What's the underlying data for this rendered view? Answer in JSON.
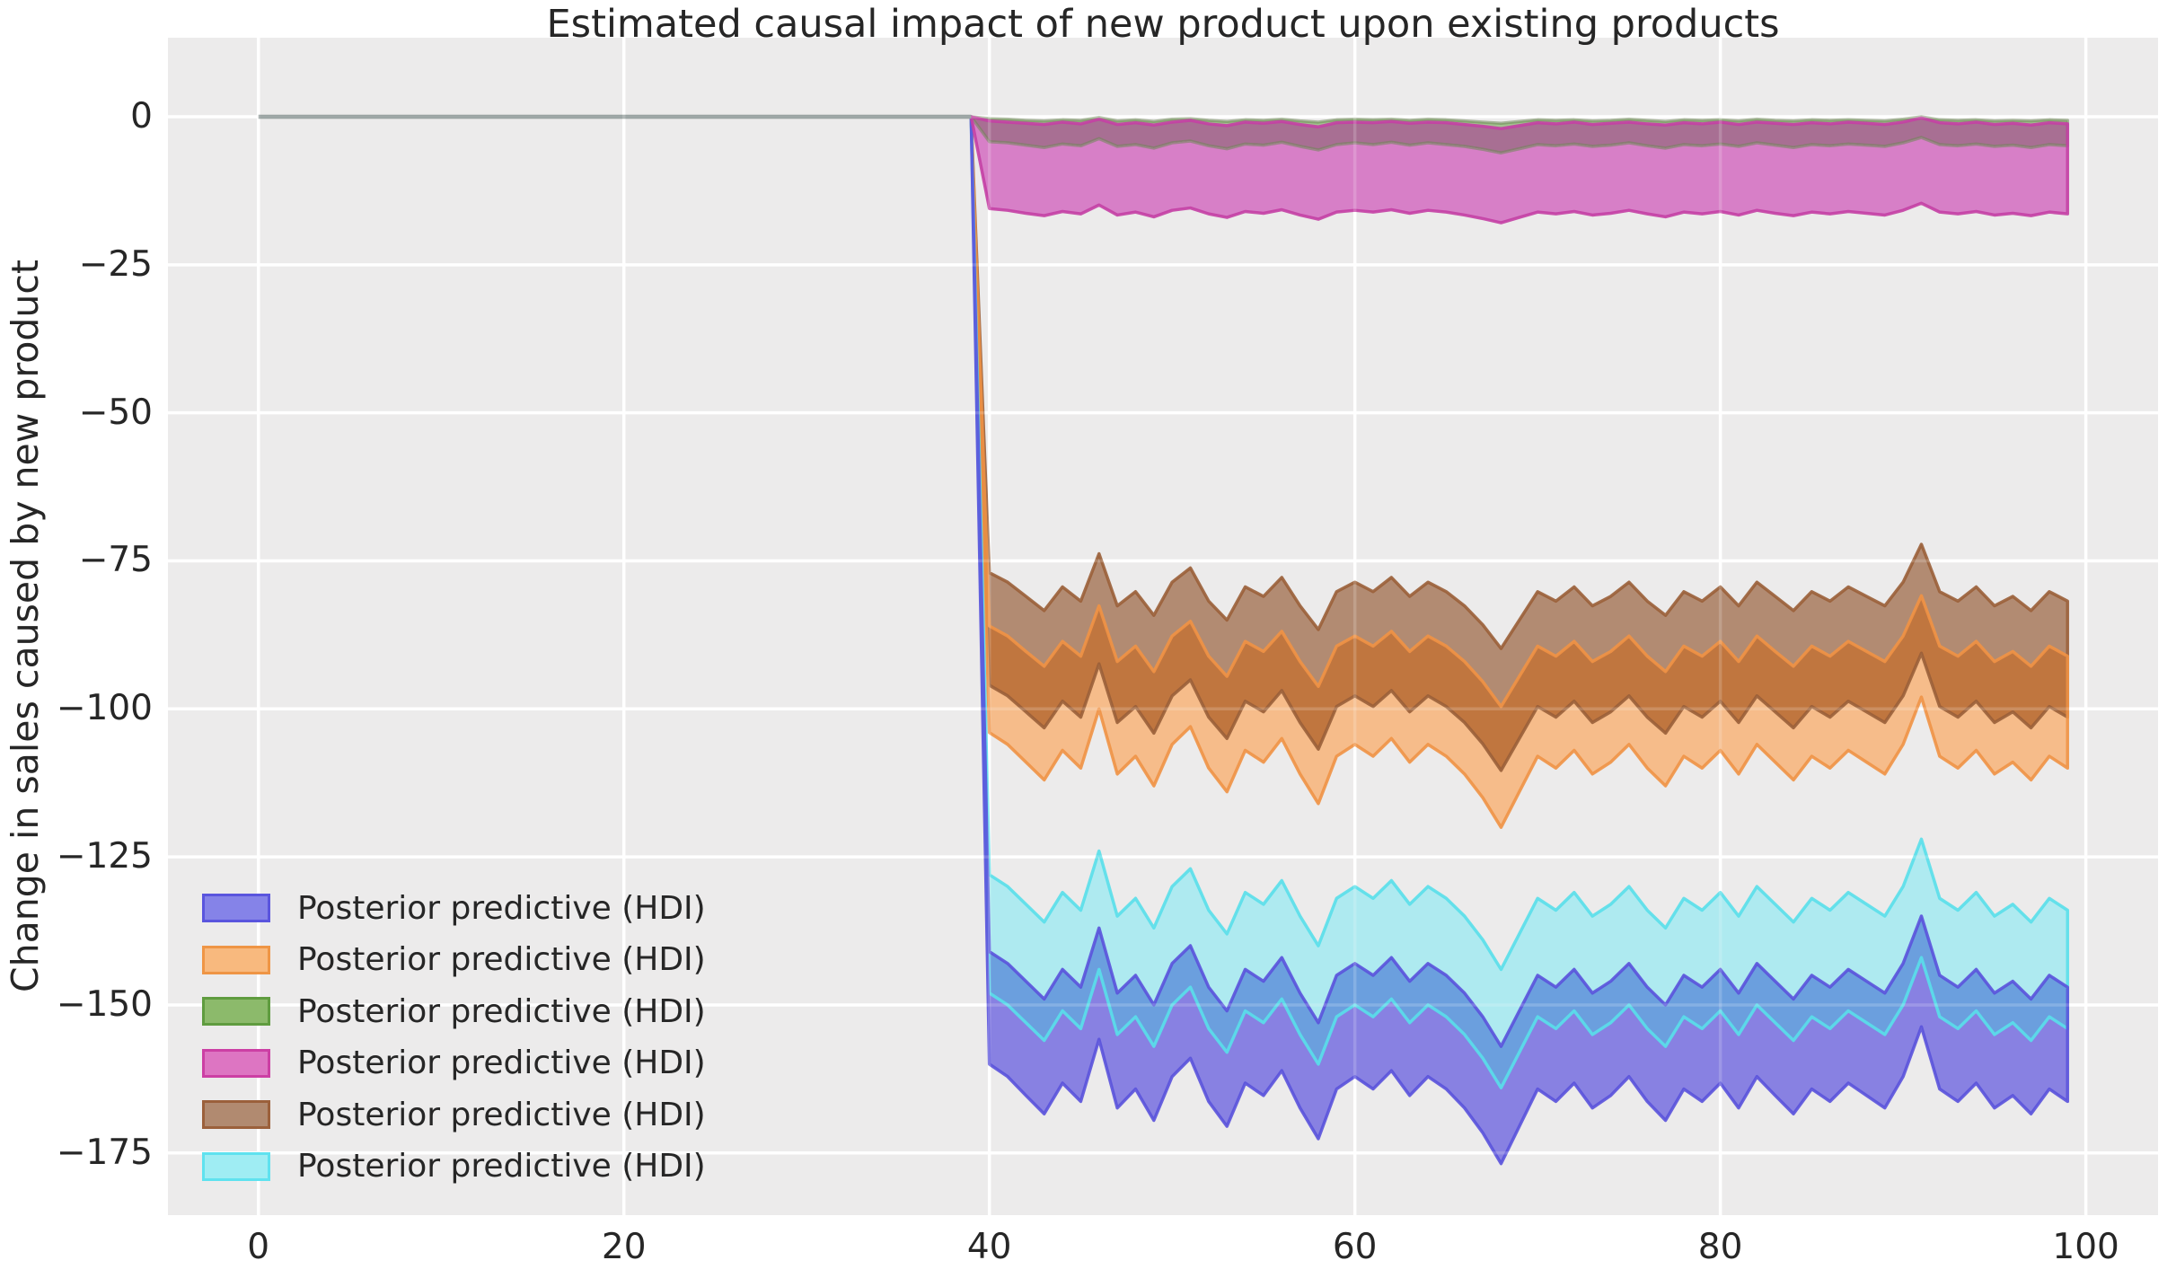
{
  "title": "Estimated causal impact of new product upon existing products",
  "ylabel": "Change in sales caused by new product",
  "legend": {
    "position": "lower left",
    "items": [
      {
        "label": "Posterior predictive (HDI)",
        "fill": "#8583E8",
        "edge": "#5A55DE",
        "series": "blue"
      },
      {
        "label": "Posterior predictive (HDI)",
        "fill": "#F8B97E",
        "edge": "#EF9545",
        "series": "orange"
      },
      {
        "label": "Posterior predictive (HDI)",
        "fill": "#8CBA6B",
        "edge": "#5F9C3F",
        "series": "green"
      },
      {
        "label": "Posterior predictive (HDI)",
        "fill": "#DD75C2",
        "edge": "#CC3FA4",
        "series": "pink"
      },
      {
        "label": "Posterior predictive (HDI)",
        "fill": "#B18A70",
        "edge": "#9B603B",
        "series": "brown"
      },
      {
        "label": "Posterior predictive (HDI)",
        "fill": "#9FEDF3",
        "edge": "#5FE2EF",
        "series": "cyan"
      }
    ]
  },
  "chart_data": {
    "type": "area",
    "title": "Estimated causal impact of new product upon existing products",
    "xlabel": "",
    "ylabel": "Change in sales caused by new product",
    "xlim": [
      -4.95,
      103.95
    ],
    "ylim": [
      -185.5,
      13.35
    ],
    "xticks": [
      0,
      20,
      40,
      60,
      80,
      100
    ],
    "yticks": [
      0,
      -25,
      -50,
      -75,
      -100,
      -125,
      -150,
      -175
    ],
    "grid": true,
    "background": "#ECEBEB",
    "gridline_color": "#FFFFFF",
    "pre_period": {
      "x_start": 0,
      "x_end": 39,
      "value": 0,
      "line_color": "#8A9594"
    },
    "x": [
      40,
      41,
      42,
      43,
      44,
      45,
      46,
      47,
      48,
      49,
      50,
      51,
      52,
      53,
      54,
      55,
      56,
      57,
      58,
      59,
      60,
      61,
      62,
      63,
      64,
      65,
      66,
      67,
      68,
      69,
      70,
      71,
      72,
      73,
      74,
      75,
      76,
      77,
      78,
      79,
      80,
      81,
      82,
      83,
      84,
      85,
      86,
      87,
      88,
      89,
      90,
      91,
      92,
      93,
      94,
      95,
      96,
      97,
      98,
      99
    ],
    "series": {
      "green": {
        "hi": [
          -0.3,
          -0.4,
          -0.6,
          -0.7,
          -0.5,
          -0.6,
          -0.1,
          -0.7,
          -0.5,
          -0.8,
          -0.4,
          -0.3,
          -0.6,
          -0.8,
          -0.5,
          -0.6,
          -0.4,
          -0.7,
          -0.9,
          -0.5,
          -0.4,
          -0.5,
          -0.4,
          -0.6,
          -0.4,
          -0.5,
          -0.7,
          -0.9,
          -1.1,
          -0.8,
          -0.5,
          -0.6,
          -0.5,
          -0.7,
          -0.6,
          -0.4,
          -0.6,
          -0.8,
          -0.5,
          -0.6,
          -0.5,
          -0.7,
          -0.4,
          -0.6,
          -0.7,
          -0.5,
          -0.6,
          -0.5,
          -0.6,
          -0.7,
          -0.4,
          0.0,
          -0.5,
          -0.6,
          -0.5,
          -0.7,
          -0.6,
          -0.7,
          -0.5,
          -0.6
        ],
        "lo": [
          -4.2,
          -4.4,
          -4.8,
          -5.2,
          -4.6,
          -4.9,
          -3.7,
          -5.0,
          -4.7,
          -5.3,
          -4.4,
          -4.1,
          -4.9,
          -5.4,
          -4.6,
          -4.8,
          -4.3,
          -5.0,
          -5.6,
          -4.7,
          -4.4,
          -4.7,
          -4.3,
          -4.8,
          -4.4,
          -4.7,
          -5.0,
          -5.5,
          -6.1,
          -5.4,
          -4.7,
          -4.9,
          -4.6,
          -5.0,
          -4.8,
          -4.4,
          -4.9,
          -5.3,
          -4.7,
          -4.9,
          -4.6,
          -5.0,
          -4.4,
          -4.8,
          -5.2,
          -4.7,
          -4.9,
          -4.6,
          -4.8,
          -5.0,
          -4.4,
          -3.5,
          -4.7,
          -4.9,
          -4.6,
          -5.0,
          -4.8,
          -5.2,
          -4.7,
          -4.9
        ]
      },
      "pink": {
        "hi": [
          -0.7,
          -0.9,
          -1.1,
          -1.3,
          -0.9,
          -1.2,
          -0.4,
          -1.3,
          -1.0,
          -1.4,
          -0.9,
          -0.6,
          -1.2,
          -1.5,
          -0.9,
          -1.1,
          -0.8,
          -1.3,
          -1.7,
          -1.0,
          -0.9,
          -1.0,
          -0.8,
          -1.1,
          -0.9,
          -1.0,
          -1.3,
          -1.6,
          -2.0,
          -1.5,
          -1.0,
          -1.2,
          -0.9,
          -1.3,
          -1.1,
          -0.9,
          -1.2,
          -1.4,
          -1.0,
          -1.2,
          -0.9,
          -1.3,
          -0.9,
          -1.1,
          -1.3,
          -1.0,
          -1.2,
          -0.9,
          -1.1,
          -1.3,
          -0.9,
          -0.2,
          -1.0,
          -1.2,
          -0.9,
          -1.3,
          -1.1,
          -1.4,
          -1.0,
          -1.2
        ],
        "lo": [
          -15.5,
          -15.8,
          -16.3,
          -16.7,
          -16.0,
          -16.4,
          -14.9,
          -16.6,
          -16.1,
          -16.9,
          -15.8,
          -15.4,
          -16.4,
          -17.0,
          -16.0,
          -16.3,
          -15.7,
          -16.6,
          -17.3,
          -16.1,
          -15.8,
          -16.1,
          -15.7,
          -16.3,
          -15.8,
          -16.1,
          -16.6,
          -17.2,
          -17.9,
          -17.0,
          -16.1,
          -16.4,
          -16.0,
          -16.6,
          -16.3,
          -15.8,
          -16.4,
          -16.9,
          -16.1,
          -16.4,
          -16.0,
          -16.6,
          -15.8,
          -16.3,
          -16.7,
          -16.1,
          -16.4,
          -16.0,
          -16.3,
          -16.6,
          -15.8,
          -14.6,
          -16.1,
          -16.4,
          -16.0,
          -16.6,
          -16.3,
          -16.7,
          -16.1,
          -16.4
        ]
      },
      "brown": {
        "hi": [
          -77.0,
          -78.6,
          -81.0,
          -83.4,
          -79.4,
          -81.8,
          -73.8,
          -82.6,
          -80.2,
          -84.2,
          -78.6,
          -76.2,
          -81.8,
          -85.0,
          -79.4,
          -81.0,
          -77.8,
          -82.6,
          -86.6,
          -80.2,
          -78.6,
          -80.2,
          -77.8,
          -81.0,
          -78.6,
          -80.2,
          -82.6,
          -85.8,
          -89.8,
          -85.0,
          -80.2,
          -81.8,
          -79.4,
          -82.6,
          -81.0,
          -78.6,
          -81.8,
          -84.2,
          -80.2,
          -81.8,
          -79.4,
          -82.6,
          -78.6,
          -81.0,
          -83.4,
          -80.2,
          -81.8,
          -79.4,
          -81.0,
          -82.6,
          -78.6,
          -72.2,
          -80.2,
          -81.8,
          -79.4,
          -82.6,
          -81.0,
          -83.4,
          -80.2,
          -81.8
        ],
        "lo": [
          -96.0,
          -97.8,
          -100.5,
          -103.2,
          -98.7,
          -101.4,
          -92.4,
          -102.3,
          -99.6,
          -104.1,
          -97.8,
          -95.1,
          -101.4,
          -105.0,
          -98.7,
          -100.5,
          -96.9,
          -102.3,
          -106.8,
          -99.6,
          -97.8,
          -99.6,
          -96.9,
          -100.5,
          -97.8,
          -99.6,
          -102.3,
          -105.9,
          -110.4,
          -105.0,
          -99.6,
          -101.4,
          -98.7,
          -102.3,
          -100.5,
          -97.8,
          -101.4,
          -104.1,
          -99.6,
          -101.4,
          -98.7,
          -102.3,
          -97.8,
          -100.5,
          -103.2,
          -99.6,
          -101.4,
          -98.7,
          -100.5,
          -102.3,
          -97.8,
          -90.6,
          -99.6,
          -101.4,
          -98.7,
          -102.3,
          -100.5,
          -103.2,
          -99.6,
          -101.4
        ]
      },
      "orange": {
        "hi": [
          -86.0,
          -87.7,
          -90.3,
          -92.8,
          -88.6,
          -91.1,
          -82.6,
          -92.0,
          -89.4,
          -93.7,
          -87.7,
          -85.2,
          -91.1,
          -94.5,
          -88.6,
          -90.3,
          -86.9,
          -92.0,
          -96.2,
          -89.4,
          -87.7,
          -89.4,
          -86.9,
          -90.3,
          -87.7,
          -89.4,
          -92.0,
          -95.4,
          -99.6,
          -94.5,
          -89.4,
          -91.1,
          -88.6,
          -92.0,
          -90.3,
          -87.7,
          -91.1,
          -93.7,
          -89.4,
          -91.1,
          -88.6,
          -92.0,
          -87.7,
          -90.3,
          -92.8,
          -89.4,
          -91.1,
          -88.6,
          -90.3,
          -92.0,
          -87.7,
          -80.9,
          -89.4,
          -91.1,
          -88.6,
          -92.0,
          -90.3,
          -92.8,
          -89.4,
          -91.1
        ],
        "lo": [
          -104,
          -106,
          -109,
          -112,
          -107,
          -110,
          -100,
          -111,
          -108,
          -113,
          -106,
          -103,
          -110,
          -114,
          -107,
          -109,
          -105,
          -111,
          -116,
          -108,
          -106,
          -108,
          -105,
          -109,
          -106,
          -108,
          -111,
          -115,
          -120,
          -114,
          -108,
          -110,
          -107,
          -111,
          -109,
          -106,
          -110,
          -113,
          -108,
          -110,
          -107,
          -111,
          -106,
          -109,
          -112,
          -108,
          -110,
          -107,
          -109,
          -111,
          -106,
          -98,
          -108,
          -110,
          -107,
          -111,
          -109,
          -112,
          -108,
          -110
        ]
      },
      "cyan": {
        "hi": [
          -128,
          -130,
          -133,
          -136,
          -131,
          -134,
          -124,
          -135,
          -132,
          -137,
          -130,
          -127,
          -134,
          -138,
          -131,
          -133,
          -129,
          -135,
          -140,
          -132,
          -130,
          -132,
          -129,
          -133,
          -130,
          -132,
          -135,
          -139,
          -144,
          -138,
          -132,
          -134,
          -131,
          -135,
          -133,
          -130,
          -134,
          -137,
          -132,
          -134,
          -131,
          -135,
          -130,
          -133,
          -136,
          -132,
          -134,
          -131,
          -133,
          -135,
          -130,
          -122,
          -132,
          -134,
          -131,
          -135,
          -133,
          -136,
          -132,
          -134
        ],
        "lo": [
          -148,
          -150,
          -153,
          -156,
          -151,
          -154,
          -144,
          -155,
          -152,
          -157,
          -150,
          -147,
          -154,
          -158,
          -151,
          -153,
          -149,
          -155,
          -160,
          -152,
          -150,
          -152,
          -149,
          -153,
          -150,
          -152,
          -155,
          -159,
          -164,
          -158,
          -152,
          -154,
          -151,
          -155,
          -153,
          -150,
          -154,
          -157,
          -152,
          -154,
          -151,
          -155,
          -150,
          -153,
          -156,
          -152,
          -154,
          -151,
          -153,
          -155,
          -150,
          -142,
          -152,
          -154,
          -151,
          -155,
          -153,
          -156,
          -152,
          -154
        ]
      },
      "blue": {
        "hi": [
          -141,
          -143,
          -146,
          -149,
          -144,
          -147,
          -137,
          -148,
          -145,
          -150,
          -143,
          -140,
          -147,
          -151,
          -144,
          -146,
          -142,
          -148,
          -153,
          -145,
          -143,
          -145,
          -142,
          -146,
          -143,
          -145,
          -148,
          -152,
          -157,
          -151,
          -145,
          -147,
          -144,
          -148,
          -146,
          -143,
          -147,
          -150,
          -145,
          -147,
          -144,
          -148,
          -143,
          -146,
          -149,
          -145,
          -147,
          -144,
          -146,
          -148,
          -143,
          -135,
          -145,
          -147,
          -144,
          -148,
          -146,
          -149,
          -145,
          -147
        ],
        "lo": [
          -160.0,
          -162.1,
          -165.3,
          -168.4,
          -163.2,
          -166.3,
          -155.8,
          -167.4,
          -164.2,
          -169.5,
          -162.1,
          -159.0,
          -166.3,
          -170.5,
          -163.2,
          -165.3,
          -161.1,
          -167.4,
          -172.6,
          -164.2,
          -162.1,
          -164.2,
          -161.1,
          -165.3,
          -162.1,
          -164.2,
          -167.4,
          -171.6,
          -176.8,
          -170.5,
          -164.2,
          -166.3,
          -163.2,
          -167.4,
          -165.3,
          -162.1,
          -166.3,
          -169.5,
          -164.2,
          -166.3,
          -163.2,
          -167.4,
          -162.1,
          -165.3,
          -168.4,
          -164.2,
          -166.3,
          -163.2,
          -165.3,
          -167.4,
          -162.1,
          -153.7,
          -164.2,
          -166.3,
          -163.2,
          -167.4,
          -165.3,
          -168.4,
          -164.2,
          -166.3
        ]
      }
    },
    "pairs": [
      {
        "upper": "brown",
        "lower": "orange",
        "upper_only_color": "#B28B72",
        "overlap_color": "#C0763F",
        "lower_only_color": "#F6BC8A",
        "upper_edge": "#9A5F39",
        "lower_edge": "#F09245",
        "upper_edge_opacity": 0.9,
        "lower_edge_opacity": 0.9
      },
      {
        "upper": "cyan",
        "lower": "blue",
        "upper_only_color": "#AEEAF0",
        "overlap_color": "#6B9FDE",
        "lower_only_color": "#8881E2",
        "upper_edge": "#59DFEA",
        "lower_edge": "#5A52DC",
        "upper_edge_opacity": 0.9,
        "lower_edge_opacity": 0.9
      },
      {
        "upper": "green",
        "lower": "pink",
        "upper_only_color": "#A3C18F",
        "overlap_color": "#A86F93",
        "lower_only_color": "#D77FC7",
        "upper_edge": "#6D8756",
        "lower_edge": "#C43FA4",
        "upper_edge_opacity": 0.55,
        "lower_edge_opacity": 0.9
      }
    ]
  }
}
